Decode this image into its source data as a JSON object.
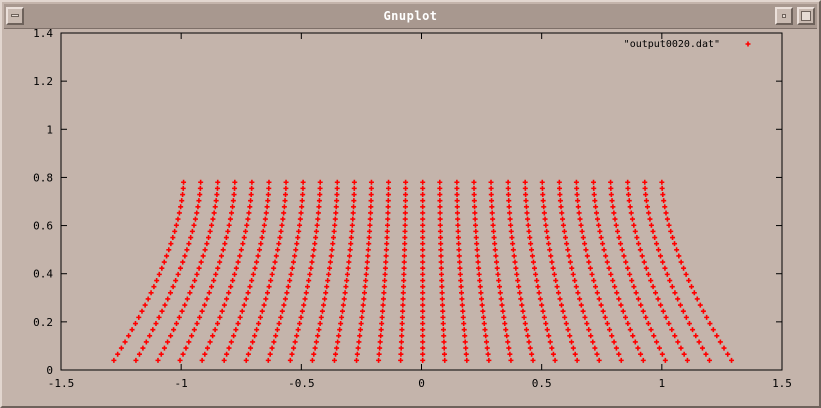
{
  "window": {
    "title": "Gnuplot"
  },
  "chart_data": {
    "type": "scatter",
    "title": "",
    "xlabel": "",
    "ylabel": "",
    "xlim": [
      -1.5,
      1.5
    ],
    "ylim": [
      0,
      1.4
    ],
    "xticks": [
      "-1.5",
      "-1",
      "-0.5",
      "0",
      "0.5",
      "1",
      "1.5"
    ],
    "yticks": [
      "0",
      "0.2",
      "0.4",
      "0.6",
      "0.8",
      "1",
      "1.2",
      "1.4"
    ],
    "grid": false,
    "legend_position": "top-right",
    "series": [
      {
        "name": "\"output0020.dat\"",
        "color": "#ff0000",
        "marker": "plus",
        "grid_points": {
          "rows": 30,
          "cols": 29,
          "top_y": 0.78,
          "bottom_y": 0.04,
          "top_x_range": [
            -0.99,
            1.0
          ],
          "bottom_x_range": [
            -1.28,
            1.29
          ]
        }
      }
    ]
  },
  "colors": {
    "background": "#c4b4ab",
    "titlebar": "#a8988f",
    "points": "#ff0000"
  }
}
